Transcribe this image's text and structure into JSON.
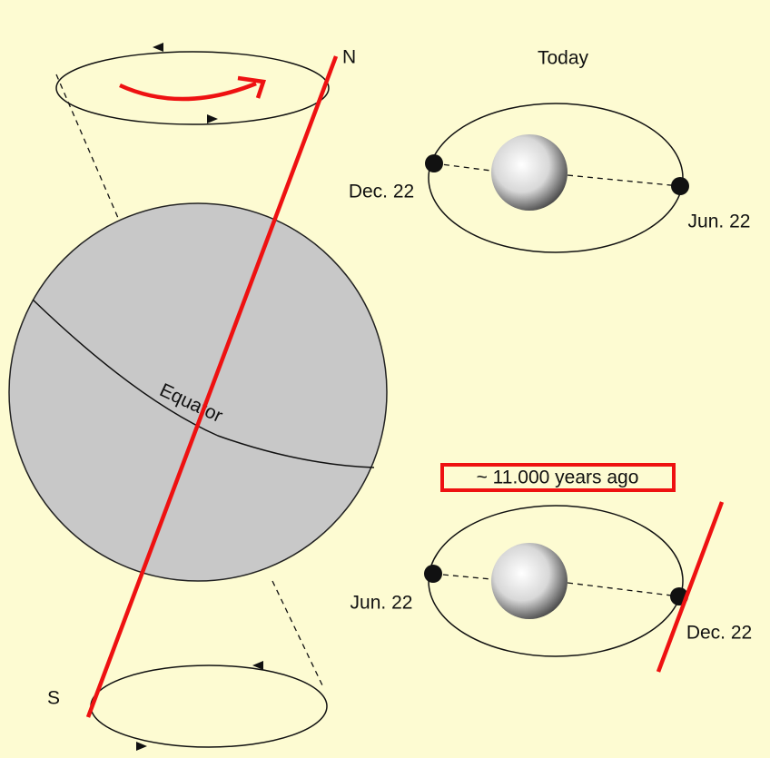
{
  "diagram": {
    "earth": {
      "north": "N",
      "south": "S",
      "equator": "Equator"
    },
    "today": {
      "title": "Today",
      "left": "Dec. 22",
      "right": "Jun. 22"
    },
    "past": {
      "title": "~ 11.000 years ago",
      "left": "Jun. 22",
      "right": "Dec. 22"
    }
  }
}
